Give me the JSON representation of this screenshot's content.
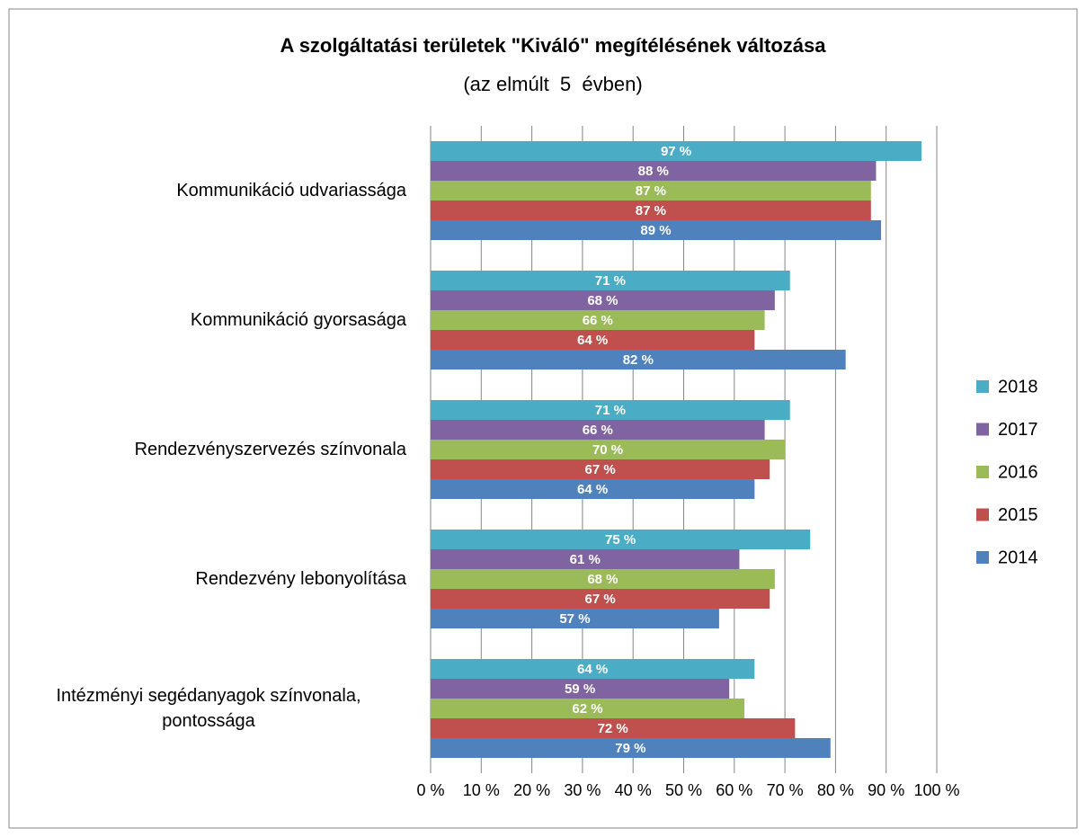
{
  "chart_data": {
    "type": "bar",
    "orientation": "horizontal",
    "title": "A szolgáltatási területek \"Kiváló\" megítélésének változása",
    "subtitle": "(az elmúlt  5  évben)",
    "categories": [
      "Kommunikáció udvariassága",
      "Kommunikáció gyorsasága",
      "Rendezvényszervezés színvonala",
      "Rendezvény lebonyolítása",
      "Intézményi segédanyagok színvonala, pontossága"
    ],
    "series": [
      {
        "name": "2018",
        "color": "#4bacc6",
        "values": [
          97,
          71,
          71,
          75,
          64
        ],
        "value_labels": [
          "97 %",
          "71 %",
          "71 %",
          "75 %",
          "64 %"
        ]
      },
      {
        "name": "2017",
        "color": "#8064a2",
        "values": [
          88,
          68,
          66,
          61,
          59
        ],
        "value_labels": [
          "88 %",
          "68 %",
          "66 %",
          "61 %",
          "59 %"
        ]
      },
      {
        "name": "2016",
        "color": "#9bbb59",
        "values": [
          87,
          66,
          70,
          68,
          62
        ],
        "value_labels": [
          "87 %",
          "66 %",
          "70 %",
          "68 %",
          "62 %"
        ]
      },
      {
        "name": "2015",
        "color": "#c0504d",
        "values": [
          87,
          64,
          67,
          67,
          72
        ],
        "value_labels": [
          "87 %",
          "64 %",
          "67 %",
          "67 %",
          "72 %"
        ]
      },
      {
        "name": "2014",
        "color": "#4f81bd",
        "values": [
          89,
          82,
          64,
          57,
          79
        ],
        "value_labels": [
          "89 %",
          "82 %",
          "64 %",
          "57 %",
          "79 %"
        ]
      }
    ],
    "xlim": [
      0,
      100
    ],
    "xticks": [
      {
        "value": 0,
        "label": "0 %"
      },
      {
        "value": 10,
        "label": "10 %"
      },
      {
        "value": 20,
        "label": "20 %"
      },
      {
        "value": 30,
        "label": "30 %"
      },
      {
        "value": 40,
        "label": "40 %"
      },
      {
        "value": 50,
        "label": "50 %"
      },
      {
        "value": 60,
        "label": "60 %"
      },
      {
        "value": 70,
        "label": "70 %"
      },
      {
        "value": 80,
        "label": "80 %"
      },
      {
        "value": 90,
        "label": "90 %"
      },
      {
        "value": 100,
        "label": "100 %"
      }
    ],
    "grid": true,
    "legend": "right"
  }
}
